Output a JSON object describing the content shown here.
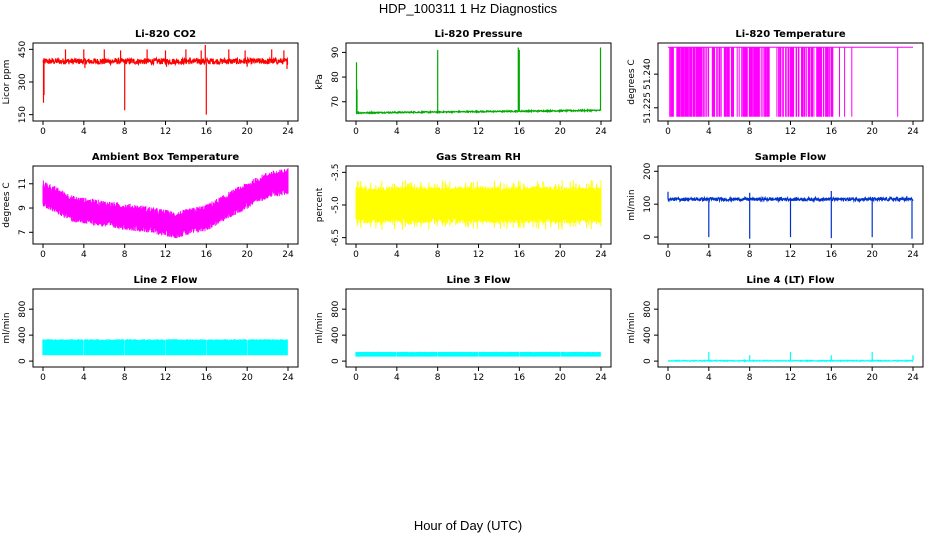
{
  "page": {
    "title": "HDP_100311  1 Hz Diagnostics",
    "xlabel": "Hour of Day (UTC)"
  },
  "chart_data": [
    {
      "type": "line",
      "title": "Li-820 CO2",
      "ylabel": "Licor ppm",
      "color": "#ff0000",
      "xlim": [
        0,
        24
      ],
      "ylim": [
        130,
        470
      ],
      "x_ticks": [
        0,
        4,
        8,
        12,
        16,
        20,
        24
      ],
      "y_ticks": [
        150,
        300,
        450
      ],
      "y_tick_labels": [
        "150",
        "300",
        "450"
      ],
      "series": [
        {
          "baseline": 395,
          "noise": 14,
          "spikes": [
            {
              "x": 0.05,
              "y": 205
            },
            {
              "x": 0.1,
              "y": 240
            },
            {
              "x": 2.2,
              "y": 450
            },
            {
              "x": 4.0,
              "y": 450
            },
            {
              "x": 4.1,
              "y": 365
            },
            {
              "x": 6.0,
              "y": 450
            },
            {
              "x": 7.6,
              "y": 445
            },
            {
              "x": 8.0,
              "y": 170
            },
            {
              "x": 10.2,
              "y": 450
            },
            {
              "x": 12.0,
              "y": 445
            },
            {
              "x": 12.1,
              "y": 370
            },
            {
              "x": 14.0,
              "y": 450
            },
            {
              "x": 15.5,
              "y": 445
            },
            {
              "x": 15.9,
              "y": 470
            },
            {
              "x": 16.0,
              "y": 150
            },
            {
              "x": 18.2,
              "y": 450
            },
            {
              "x": 19.8,
              "y": 445
            },
            {
              "x": 20.0,
              "y": 370
            },
            {
              "x": 22.4,
              "y": 450
            },
            {
              "x": 23.6,
              "y": 445
            },
            {
              "x": 23.9,
              "y": 360
            }
          ]
        }
      ]
    },
    {
      "type": "line",
      "title": "Li-820 Pressure",
      "ylabel": "kPa",
      "color": "#00aa00",
      "xlim": [
        0,
        24
      ],
      "ylim": [
        63,
        93
      ],
      "x_ticks": [
        0,
        4,
        8,
        12,
        16,
        20,
        24
      ],
      "y_ticks": [
        70,
        80,
        90
      ],
      "y_tick_labels": [
        "70",
        "80",
        "90"
      ],
      "series": [
        {
          "baseline_start": 65.5,
          "baseline_end": 66.5,
          "noise": 0.25,
          "spikes": [
            {
              "x": 0.05,
              "y": 86
            },
            {
              "x": 0.1,
              "y": 75
            },
            {
              "x": 8.0,
              "y": 91
            },
            {
              "x": 15.9,
              "y": 92
            },
            {
              "x": 16.0,
              "y": 91
            },
            {
              "x": 23.95,
              "y": 92
            }
          ]
        }
      ]
    },
    {
      "type": "line",
      "title": "Li-820 Temperature",
      "ylabel": "degrees C",
      "color": "#ff00ff",
      "xlim": [
        0,
        24
      ],
      "ylim": [
        51.22,
        51.253
      ],
      "x_ticks": [
        0,
        4,
        8,
        12,
        16,
        20,
        24
      ],
      "y_ticks": [
        51.225,
        51.24
      ],
      "y_tick_labels": [
        "51.225",
        "51.240"
      ],
      "series": [
        {
          "high": 51.252,
          "low": 51.221,
          "dense_ranges": [
            [
              0.1,
              4.0
            ],
            [
              4.3,
              16.2
            ]
          ],
          "sparse_drops": [
            0.3,
            0.9,
            1.6,
            2.2,
            3.1,
            3.6,
            16.8,
            17.3,
            18.0,
            22.5
          ]
        }
      ]
    },
    {
      "type": "line",
      "title": "Ambient Box Temperature",
      "ylabel": "degrees C",
      "color": "#ff00ff",
      "xlim": [
        0,
        24
      ],
      "ylim": [
        6.2,
        12.3
      ],
      "x_ticks": [
        0,
        4,
        8,
        12,
        16,
        20,
        24
      ],
      "y_ticks": [
        7,
        9,
        11
      ],
      "y_tick_labels": [
        "7",
        "9",
        "11"
      ],
      "series": [
        {
          "trend": [
            [
              0,
              10.2
            ],
            [
              3,
              8.9
            ],
            [
              7,
              8.4
            ],
            [
              10,
              8.1
            ],
            [
              13,
              7.6
            ],
            [
              16,
              8.2
            ],
            [
              19,
              9.6
            ],
            [
              22,
              10.9
            ],
            [
              24,
              11.2
            ]
          ],
          "band": 1.1
        }
      ]
    },
    {
      "type": "line",
      "title": "Gas Stream RH",
      "ylabel": "percent",
      "color": "#ffff00",
      "xlim": [
        0,
        24
      ],
      "ylim": [
        -6.7,
        -3.3
      ],
      "x_ticks": [
        0,
        4,
        8,
        12,
        16,
        20,
        24
      ],
      "y_ticks": [
        -6.5,
        -5.0,
        -3.5
      ],
      "y_tick_labels": [
        "-6.5",
        "-5.0",
        "-3.5"
      ],
      "series": [
        {
          "center": -5.0,
          "band": 0.85,
          "outer": 1.15
        }
      ]
    },
    {
      "type": "line",
      "title": "Sample Flow",
      "ylabel": "ml/min",
      "color": "#0033cc",
      "xlim": [
        0,
        24
      ],
      "ylim": [
        -15,
        210
      ],
      "x_ticks": [
        0,
        4,
        8,
        12,
        16,
        20,
        24
      ],
      "y_ticks": [
        0,
        100,
        200
      ],
      "y_tick_labels": [
        "0",
        "100",
        "200"
      ],
      "series": [
        {
          "baseline": 115,
          "noise": 5,
          "spikes": [
            {
              "x": 0.0,
              "y": 138
            },
            {
              "x": 4.0,
              "y": 0
            },
            {
              "x": 8.0,
              "y": -5
            },
            {
              "x": 12.0,
              "y": 0
            },
            {
              "x": 16.0,
              "y": -3
            },
            {
              "x": 20.0,
              "y": 0
            },
            {
              "x": 23.9,
              "y": -5
            },
            {
              "x": 8.0,
              "y": 135
            },
            {
              "x": 16.0,
              "y": 140
            }
          ]
        }
      ]
    },
    {
      "type": "line",
      "title": "Line 2 Flow",
      "ylabel": "ml/min",
      "color": "#00ffff",
      "xlim": [
        0,
        24
      ],
      "ylim": [
        -60,
        1080
      ],
      "x_ticks": [
        0,
        4,
        8,
        12,
        16,
        20,
        24
      ],
      "y_ticks": [
        0,
        400,
        800
      ],
      "y_tick_labels": [
        "0",
        "400",
        "800"
      ],
      "series": [
        {
          "low": 90,
          "high": 330,
          "gaps": [
            4.0,
            8.0,
            12.0,
            16.0,
            20.0
          ]
        }
      ]
    },
    {
      "type": "line",
      "title": "Line 3 Flow",
      "ylabel": "ml/min",
      "color": "#00ffff",
      "xlim": [
        0,
        24
      ],
      "ylim": [
        -60,
        1080
      ],
      "x_ticks": [
        0,
        4,
        8,
        12,
        16,
        20,
        24
      ],
      "y_ticks": [
        0,
        400,
        800
      ],
      "y_tick_labels": [
        "0",
        "400",
        "800"
      ],
      "series": [
        {
          "low": 70,
          "high": 140,
          "gaps": [
            4.0,
            8.0,
            12.0,
            16.0,
            20.0
          ]
        }
      ]
    },
    {
      "type": "line",
      "title": "Line 4 (LT) Flow",
      "ylabel": "ml/min",
      "color": "#00ffff",
      "xlim": [
        0,
        24
      ],
      "ylim": [
        -60,
        1080
      ],
      "x_ticks": [
        0,
        4,
        8,
        12,
        16,
        20,
        24
      ],
      "y_ticks": [
        0,
        400,
        800
      ],
      "y_tick_labels": [
        "0",
        "400",
        "800"
      ],
      "series": [
        {
          "baseline": 5,
          "noise": 6,
          "spikes": [
            {
              "x": 4.0,
              "y": 140
            },
            {
              "x": 8.0,
              "y": 90
            },
            {
              "x": 12.0,
              "y": 140
            },
            {
              "x": 16.0,
              "y": 90
            },
            {
              "x": 20.0,
              "y": 140
            },
            {
              "x": 24.0,
              "y": 90
            }
          ]
        }
      ]
    }
  ]
}
